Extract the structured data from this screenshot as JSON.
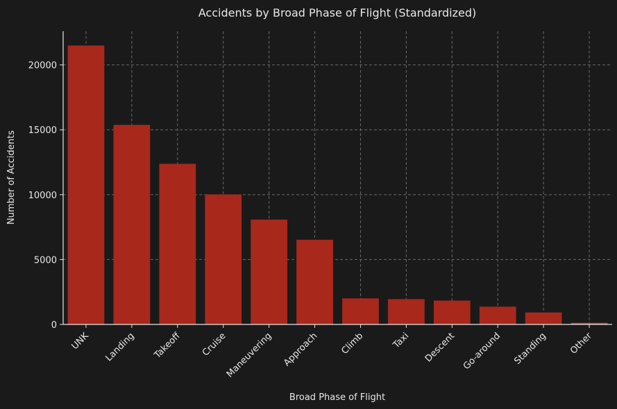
{
  "chart_data": {
    "type": "bar",
    "title": "Accidents by Broad Phase of Flight (Standardized)",
    "xlabel": "Broad Phase of Flight",
    "ylabel": "Number of Accidents",
    "categories": [
      "UNK",
      "Landing",
      "Takeoff",
      "Cruise",
      "Maneuvering",
      "Approach",
      "Climb",
      "Taxi",
      "Descent",
      "Go-around",
      "Standing",
      "Other"
    ],
    "values": [
      21500,
      15380,
      12380,
      10020,
      8080,
      6530,
      2010,
      1950,
      1840,
      1370,
      920,
      120
    ],
    "yticks": [
      0,
      5000,
      10000,
      15000,
      20000
    ],
    "ylim": [
      0,
      22600
    ],
    "grid": true,
    "legend": "none"
  },
  "colors": {
    "background": "#1a1a1a",
    "bar": "#a8281c",
    "bar_light": "#c0463a",
    "grid": "#6a6a6a",
    "axis": "#e8e8e8",
    "text": "#e8e8e8"
  }
}
